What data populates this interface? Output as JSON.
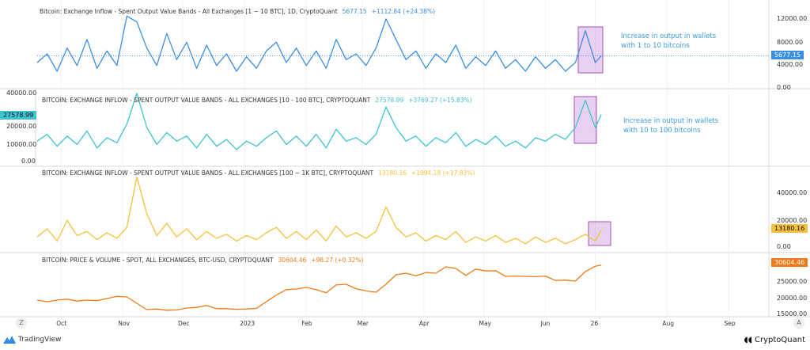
{
  "chart_data": [
    {
      "type": "line",
      "title": "Bitcoin: Exchange Inflow - Spent Output Value Bands - All Exchanges [1 ~ 10 BTC], 1D, CryptoQuant",
      "last_value": "5677.15",
      "change": "+1112.84 (+24.38%)",
      "color": "#3a8ee6",
      "y_ticks": [
        "12000.00",
        "8000.00",
        "4000.00",
        "0.00"
      ],
      "ylim": [
        0,
        12000
      ],
      "y_axis_side": "right",
      "annotation": [
        "Increase in output in wallets",
        " with 1 to 10 bitcoins"
      ],
      "x": [
        "2022-09-19",
        "2022-09-24",
        "2022-09-29",
        "2022-10-04",
        "2022-10-09",
        "2022-10-14",
        "2022-10-19",
        "2022-10-24",
        "2022-10-29",
        "2022-11-03",
        "2022-11-08",
        "2022-11-13",
        "2022-11-18",
        "2022-11-23",
        "2022-11-28",
        "2022-12-03",
        "2022-12-08",
        "2022-12-13",
        "2022-12-18",
        "2022-12-23",
        "2022-12-28",
        "2023-01-02",
        "2023-01-07",
        "2023-01-12",
        "2023-01-17",
        "2023-01-22",
        "2023-01-27",
        "2023-02-01",
        "2023-02-06",
        "2023-02-11",
        "2023-02-16",
        "2023-02-21",
        "2023-02-26",
        "2023-03-03",
        "2023-03-08",
        "2023-03-13",
        "2023-03-18",
        "2023-03-23",
        "2023-03-28",
        "2023-04-02",
        "2023-04-07",
        "2023-04-12",
        "2023-04-17",
        "2023-04-22",
        "2023-04-27",
        "2023-05-02",
        "2023-05-07",
        "2023-05-12",
        "2023-05-17",
        "2023-05-22",
        "2023-05-27",
        "2023-06-01",
        "2023-06-06",
        "2023-06-11",
        "2023-06-16",
        "2023-06-21",
        "2023-06-26",
        "2023-06-29"
      ],
      "values": [
        4500,
        6000,
        3000,
        7000,
        4000,
        8500,
        3500,
        6500,
        4000,
        12500,
        11500,
        7000,
        4000,
        9500,
        5000,
        8000,
        3500,
        7500,
        4000,
        6000,
        3000,
        5500,
        3500,
        6500,
        8000,
        4500,
        7000,
        4000,
        6500,
        3500,
        8500,
        5000,
        6000,
        4000,
        7000,
        12000,
        8500,
        5000,
        6500,
        3500,
        6000,
        4500,
        7500,
        3500,
        5500,
        4000,
        6500,
        3500,
        5000,
        3000,
        5500,
        3500,
        5000,
        3000,
        4500,
        10000,
        4500,
        5677.15
      ]
    },
    {
      "type": "line",
      "title": "BITCOIN: EXCHANGE INFLOW - SPENT OUTPUT VALUE BANDS - ALL EXCHANGES [10 - 100 BTC], CRYPTOQUANT",
      "last_value": "27578.99",
      "change": "+3769.27 (+15.83%)",
      "color": "#3cc3cf",
      "y_ticks": [
        "40000.00",
        "20000.00",
        "10000.00",
        "0.00"
      ],
      "ylim": [
        0,
        40000
      ],
      "y_axis_side": "left",
      "annotation": [
        "Increase in output in wallets",
        " with 10 to 100 bitcoins"
      ],
      "values": [
        12000,
        16000,
        9000,
        15000,
        10000,
        18000,
        8000,
        14000,
        11000,
        22000,
        40000,
        20000,
        10000,
        17000,
        12000,
        15000,
        8000,
        16000,
        9000,
        13000,
        7000,
        12000,
        9000,
        14000,
        18000,
        10000,
        15000,
        9000,
        16000,
        8000,
        19000,
        12000,
        14000,
        10000,
        16000,
        32000,
        20000,
        12000,
        15000,
        9000,
        14000,
        11000,
        17000,
        9000,
        13000,
        10000,
        15000,
        9000,
        12000,
        8000,
        14000,
        12000,
        16000,
        13000,
        20000,
        36000,
        20000,
        27578.99
      ]
    },
    {
      "type": "line",
      "title": "BITCOIN: EXCHANGE INFLOW - SPENT OUTPUT VALUE BANDS - ALL EXCHANGES [100 ~ 1K BTC], CRYPTOQUANT",
      "last_value": "13180.16",
      "change": "+1994.18 (+17.83%)",
      "color": "#f5c13b",
      "y_ticks": [
        "40000.00",
        "20000.00",
        "0.00"
      ],
      "ylim": [
        0,
        40000
      ],
      "y_axis_side": "right",
      "values": [
        8000,
        14000,
        5000,
        20000,
        9000,
        12000,
        6000,
        11000,
        7000,
        15000,
        52000,
        25000,
        9000,
        18000,
        8000,
        14000,
        6000,
        12000,
        7000,
        10000,
        5000,
        9000,
        6000,
        11000,
        15000,
        7000,
        12000,
        6000,
        13000,
        5000,
        16000,
        8000,
        11000,
        7000,
        12000,
        30000,
        15000,
        8000,
        11000,
        5000,
        9000,
        6000,
        12000,
        4000,
        8000,
        5000,
        9000,
        4000,
        7000,
        3000,
        8000,
        4000,
        7000,
        3000,
        6000,
        10000,
        5000,
        13180.16
      ]
    },
    {
      "type": "line",
      "title": "BITCOIN: PRICE & VOLUME - SPOT, ALL EXCHANGES, BTC-USD, CRYPTOQUANT",
      "last_value": "30604.46",
      "change": "+98.27 (+0.32%)",
      "color": "#f07b16",
      "y_ticks": [
        "25000.00",
        "20000.00",
        "15000.00"
      ],
      "ylim": [
        15000,
        32000
      ],
      "y_axis_side": "right",
      "values": [
        19500,
        19000,
        19500,
        19800,
        19200,
        19500,
        19300,
        20000,
        20700,
        20500,
        18500,
        16500,
        16700,
        16300,
        16400,
        17000,
        17200,
        17800,
        16800,
        16800,
        16600,
        16700,
        16900,
        19000,
        21100,
        22800,
        23000,
        23500,
        22800,
        21800,
        24300,
        24500,
        23100,
        22400,
        22000,
        24500,
        27500,
        28000,
        27200,
        28200,
        28000,
        30000,
        29500,
        27300,
        29300,
        28700,
        28800,
        27000,
        27100,
        27000,
        26900,
        27100,
        25700,
        25800,
        25500,
        28500,
        30200,
        30604.46
      ]
    }
  ],
  "time_axis": {
    "labels": [
      "Oct",
      "Nov",
      "Dec",
      "2023",
      "Feb",
      "Mar",
      "Apr",
      "May",
      "Jun",
      "26",
      "Aug",
      "Sep"
    ],
    "dates": [
      "2022-10-01",
      "2022-11-01",
      "2022-12-01",
      "2023-01-01",
      "2023-02-01",
      "2023-03-01",
      "2023-04-01",
      "2023-05-01",
      "2023-06-01",
      "2023-06-26",
      "2023-08-01",
      "2023-09-01"
    ],
    "left_button": "Z",
    "right_button": "A"
  },
  "highlight_color": "#a64fb8",
  "footer": {
    "left_brand": "TradingView",
    "right_brand": "CryptoQuant"
  }
}
